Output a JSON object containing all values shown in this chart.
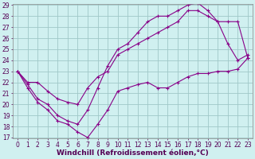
{
  "xlabel": "Windchill (Refroidissement éolien,°C)",
  "background_color": "#d0f0f0",
  "grid_color": "#a0c8c8",
  "line_color": "#880088",
  "xlim_min": -0.5,
  "xlim_max": 23.5,
  "ylim_min": 17,
  "ylim_max": 29,
  "xticks": [
    0,
    1,
    2,
    3,
    4,
    5,
    6,
    7,
    8,
    9,
    10,
    11,
    12,
    13,
    14,
    15,
    16,
    17,
    18,
    19,
    20,
    21,
    22,
    23
  ],
  "yticks": [
    17,
    18,
    19,
    20,
    21,
    22,
    23,
    24,
    25,
    26,
    27,
    28,
    29
  ],
  "line1_x": [
    0,
    1,
    2,
    3,
    4,
    5,
    6,
    7,
    8,
    9,
    10,
    11,
    12,
    13,
    14,
    15,
    16,
    17,
    18,
    19,
    20,
    21,
    22,
    23
  ],
  "line1_y": [
    23,
    21.5,
    20.2,
    19.5,
    18.5,
    18.2,
    17.5,
    17.0,
    18.2,
    19.5,
    21.2,
    21.5,
    21.8,
    22.0,
    21.5,
    21.5,
    22.0,
    22.5,
    22.8,
    22.8,
    23.0,
    23.0,
    23.2,
    24.2
  ],
  "line2_x": [
    0,
    1,
    2,
    3,
    4,
    5,
    6,
    7,
    8,
    9,
    10,
    11,
    12,
    13,
    14,
    15,
    16,
    17,
    18,
    19,
    20,
    21,
    22,
    23
  ],
  "line2_y": [
    23,
    22.0,
    22.0,
    21.2,
    20.5,
    20.2,
    20.0,
    21.5,
    22.5,
    23.0,
    24.5,
    25.0,
    25.5,
    26.0,
    26.5,
    27.0,
    27.5,
    28.5,
    28.5,
    28.0,
    27.5,
    27.5,
    27.5,
    24.2
  ],
  "line3_x": [
    0,
    1,
    2,
    3,
    4,
    5,
    6,
    7,
    8,
    9,
    10,
    11,
    12,
    13,
    14,
    15,
    16,
    17,
    18,
    19,
    20,
    21,
    22,
    23
  ],
  "line3_y": [
    23,
    21.8,
    20.5,
    20.0,
    19.0,
    18.5,
    18.2,
    19.5,
    21.5,
    23.5,
    25.0,
    25.5,
    26.5,
    27.5,
    28.0,
    28.0,
    28.5,
    29.0,
    29.2,
    28.5,
    27.5,
    25.5,
    24.0,
    24.5
  ],
  "tick_fontsize": 5.5,
  "label_fontsize": 6.5
}
